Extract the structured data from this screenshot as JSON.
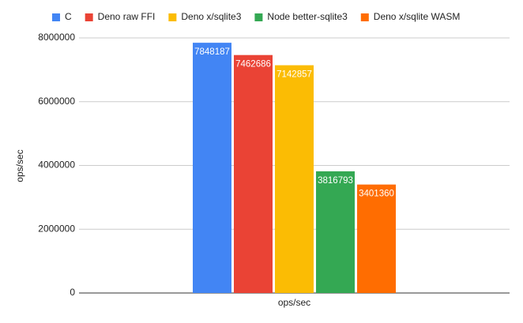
{
  "chart_data": {
    "type": "bar",
    "categories": [
      "ops/sec"
    ],
    "series": [
      {
        "name": "C",
        "color": "#4285f4",
        "values": [
          7848187
        ]
      },
      {
        "name": "Deno raw FFI",
        "color": "#ea4335",
        "values": [
          7462686
        ]
      },
      {
        "name": "Deno x/sqlite3",
        "color": "#fbbc04",
        "values": [
          7142857
        ]
      },
      {
        "name": "Node better-sqlite3",
        "color": "#34a853",
        "values": [
          3816793
        ]
      },
      {
        "name": "Deno x/sqlite WASM",
        "color": "#ff6d01",
        "values": [
          3401360
        ]
      }
    ],
    "y_label": "ops/sec",
    "ylim": [
      0,
      8000000
    ],
    "yticks": [
      0,
      2000000,
      4000000,
      6000000,
      8000000
    ],
    "grid": true,
    "legend": "top"
  }
}
